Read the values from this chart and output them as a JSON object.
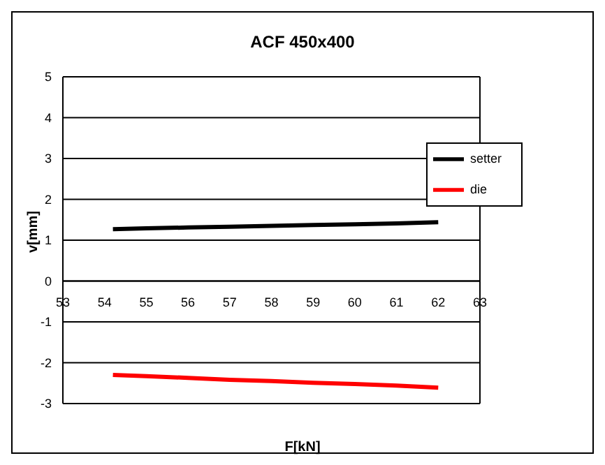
{
  "chart_data": {
    "type": "line",
    "title": "ACF 450x400",
    "xlabel": "F[kN]",
    "ylabel": "v[mm]",
    "x": [
      54.2,
      55,
      56,
      57,
      58,
      59,
      60,
      61,
      62
    ],
    "series": [
      {
        "name": "setter",
        "color": "#000000",
        "values": [
          1.27,
          1.29,
          1.31,
          1.33,
          1.35,
          1.37,
          1.39,
          1.41,
          1.44
        ]
      },
      {
        "name": "die",
        "color": "#ff0000",
        "values": [
          -2.3,
          -2.33,
          -2.37,
          -2.42,
          -2.45,
          -2.49,
          -2.52,
          -2.56,
          -2.61
        ]
      }
    ],
    "xlim": [
      53,
      63
    ],
    "xticks": [
      53,
      54,
      55,
      56,
      57,
      58,
      59,
      60,
      61,
      62,
      63
    ],
    "ylim": [
      -3,
      5
    ],
    "yticks": [
      -3,
      -2,
      -1,
      0,
      1,
      2,
      3,
      4,
      5
    ],
    "grid": "y",
    "legend": "right",
    "marker": "none",
    "line_style": "solid"
  }
}
